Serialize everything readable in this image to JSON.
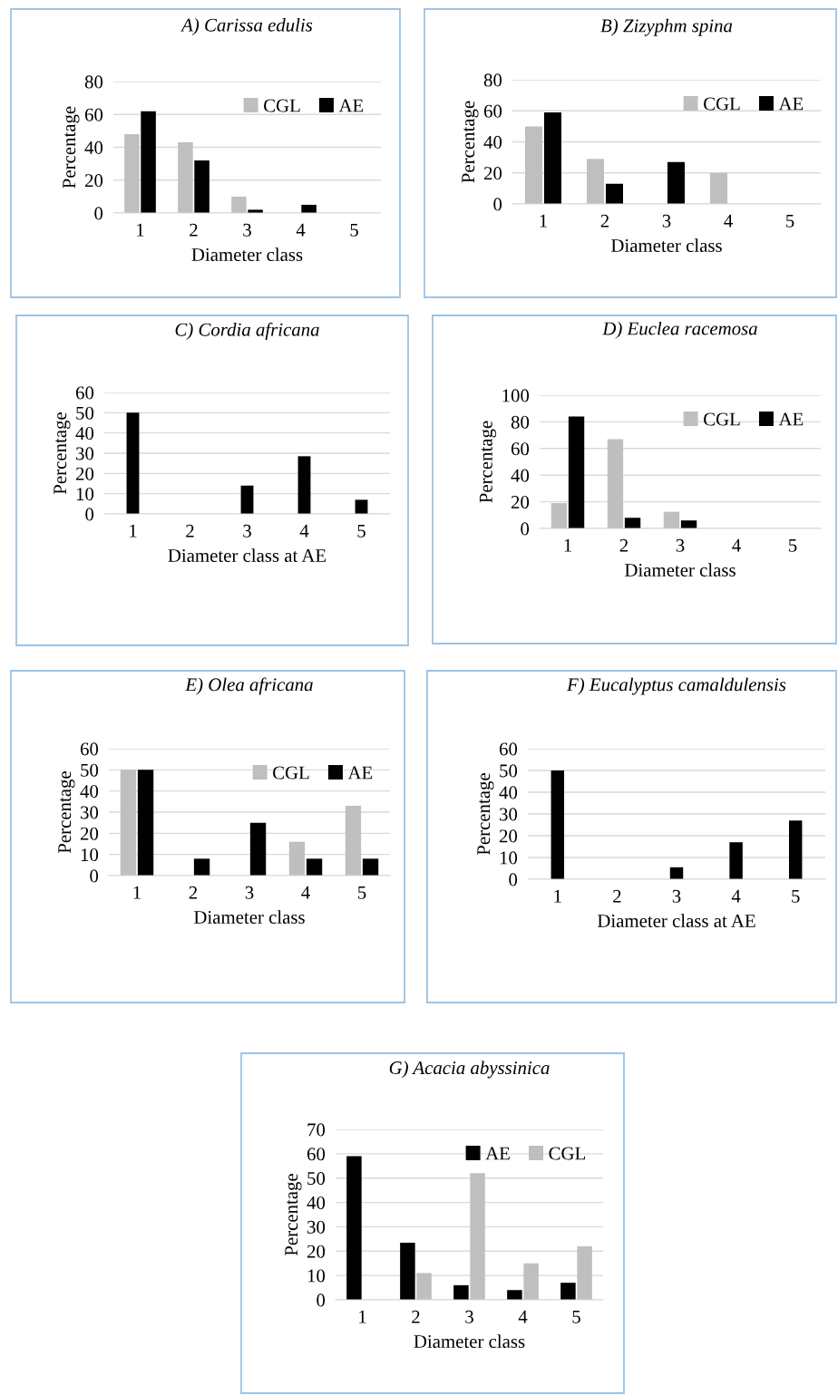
{
  "chart_data": [
    {
      "type": "bar",
      "title": "A) Carissa edulis",
      "xlabel": "Diameter class",
      "ylabel": "Percentage",
      "categories": [
        "1",
        "2",
        "3",
        "4",
        "5"
      ],
      "series": [
        {
          "name": "CGL",
          "color": "#bfbfbf",
          "values": [
            48,
            43,
            10,
            0,
            0
          ]
        },
        {
          "name": "AE",
          "color": "#000000",
          "values": [
            62,
            32,
            2,
            5,
            0
          ]
        }
      ],
      "ylim": [
        0,
        80
      ],
      "yticks": [
        0,
        20,
        40,
        60,
        80
      ],
      "grid": "y",
      "legend": "top right"
    },
    {
      "type": "bar",
      "title": "B) Zizyphm spina",
      "xlabel": "Diameter class",
      "ylabel": "Percentage",
      "categories": [
        "1",
        "2",
        "3",
        "4",
        "5"
      ],
      "series": [
        {
          "name": "CGL",
          "color": "#bfbfbf",
          "values": [
            50,
            29,
            0,
            20,
            0
          ]
        },
        {
          "name": "AE",
          "color": "#000000",
          "values": [
            59,
            13,
            27,
            0,
            0
          ]
        }
      ],
      "ylim": [
        0,
        80
      ],
      "yticks": [
        0,
        20,
        40,
        60,
        80
      ],
      "grid": "y",
      "legend": "top right"
    },
    {
      "type": "bar",
      "title": "C) Cordia africana",
      "xlabel": "Diameter class at AE",
      "ylabel": "Percentage",
      "categories": [
        "1",
        "2",
        "3",
        "4",
        "5"
      ],
      "series": [
        {
          "color": "#000000",
          "values": [
            50,
            0,
            14,
            28.5,
            7
          ]
        }
      ],
      "ylim": [
        0,
        60
      ],
      "yticks": [
        0,
        10,
        20,
        30,
        40,
        50,
        60
      ],
      "grid": "y"
    },
    {
      "type": "bar",
      "title": "D) Euclea racemosa",
      "xlabel": "Diameter class",
      "ylabel": "Percentage",
      "categories": [
        "1",
        "2",
        "3",
        "4",
        "5"
      ],
      "series": [
        {
          "name": "CGL",
          "color": "#bfbfbf",
          "values": [
            19,
            67,
            12.5,
            0,
            0
          ]
        },
        {
          "name": "AE",
          "color": "#000000",
          "values": [
            84,
            8,
            6,
            0,
            0
          ]
        }
      ],
      "ylim": [
        0,
        100
      ],
      "yticks": [
        0,
        20,
        40,
        60,
        80,
        100
      ],
      "grid": "y",
      "legend": "top right"
    },
    {
      "type": "bar",
      "title": "E) Olea africana",
      "xlabel": "Diameter class",
      "ylabel": "Percentage",
      "categories": [
        "1",
        "2",
        "3",
        "4",
        "5"
      ],
      "series": [
        {
          "name": "CGL",
          "color": "#bfbfbf",
          "values": [
            50,
            0,
            0,
            16,
            33
          ]
        },
        {
          "name": "AE",
          "color": "#000000",
          "values": [
            50,
            8,
            25,
            8,
            8
          ]
        }
      ],
      "ylim": [
        0,
        60
      ],
      "yticks": [
        0,
        10,
        20,
        30,
        40,
        50,
        60
      ],
      "grid": "y",
      "legend": "top right"
    },
    {
      "type": "bar",
      "title": "F) Eucalyptus camaldulensis",
      "xlabel": "Diameter class at AE",
      "ylabel": "Percentage",
      "categories": [
        "1",
        "2",
        "3",
        "4",
        "5"
      ],
      "series": [
        {
          "color": "#000000",
          "values": [
            50,
            0,
            5.5,
            17,
            27
          ]
        }
      ],
      "ylim": [
        0,
        60
      ],
      "yticks": [
        0,
        10,
        20,
        30,
        40,
        50,
        60
      ],
      "grid": "y"
    },
    {
      "type": "bar",
      "title": "G) Acacia abyssinica",
      "xlabel": "Diameter class",
      "ylabel": "Percentage",
      "categories": [
        "1",
        "2",
        "3",
        "4",
        "5"
      ],
      "series": [
        {
          "name": "AE",
          "color": "#000000",
          "values": [
            59,
            23.5,
            6,
            4,
            7
          ]
        },
        {
          "name": "CGL",
          "color": "#bfbfbf",
          "values": [
            0,
            11,
            52,
            15,
            22
          ]
        }
      ],
      "ylim": [
        0,
        70
      ],
      "yticks": [
        0,
        10,
        20,
        30,
        40,
        50,
        60,
        70
      ],
      "grid": "y",
      "legend": "top right"
    }
  ]
}
